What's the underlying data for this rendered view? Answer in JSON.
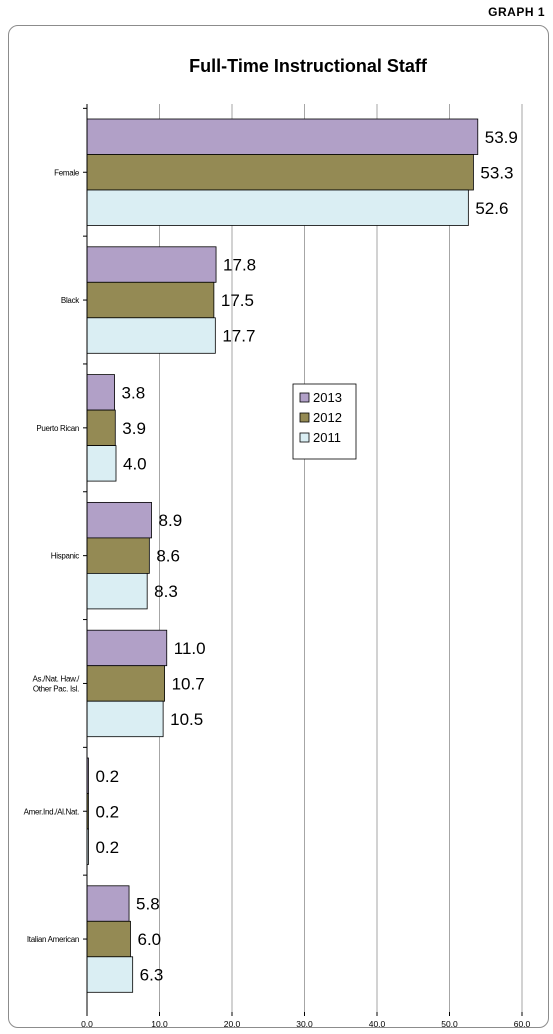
{
  "page_label": "GRAPH 1",
  "chart_data": {
    "type": "bar",
    "orientation": "horizontal",
    "title": "Full-Time Instructional Staff",
    "categories": [
      [
        "Female"
      ],
      [
        "Black"
      ],
      [
        "Puerto Rican"
      ],
      [
        "Hispanic"
      ],
      [
        "As./Nat. Haw./",
        "Other Pac. Isl."
      ],
      [
        "Amer.Ind./Al.Nat."
      ],
      [
        "Italian American"
      ]
    ],
    "series": [
      {
        "name": "2013",
        "color": "#b1a0c7",
        "values": [
          53.9,
          17.8,
          3.8,
          8.9,
          11.0,
          0.2,
          5.8
        ]
      },
      {
        "name": "2012",
        "color": "#948a54",
        "values": [
          53.3,
          17.5,
          3.9,
          8.6,
          10.7,
          0.2,
          6.0
        ]
      },
      {
        "name": "2011",
        "color": "#daeef3",
        "values": [
          52.6,
          17.7,
          4.0,
          8.3,
          10.5,
          0.2,
          6.3
        ]
      }
    ],
    "xlim": [
      0,
      60
    ],
    "xticks": [
      "0.0",
      "10.0",
      "20.0",
      "30.0",
      "40.0",
      "50.0",
      "60.0"
    ],
    "grid": "vertical",
    "legend": "center-right"
  }
}
